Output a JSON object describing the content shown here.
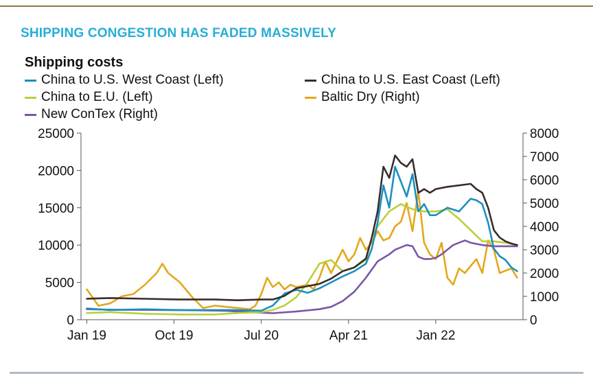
{
  "header": {
    "headline": "SHIPPING CONGESTION HAS FADED MASSIVELY"
  },
  "colors": {
    "headline": "#26aed6",
    "west_coast": "#1a8fc1",
    "east_coast": "#3a2c2c",
    "eu": "#bccf38",
    "baltic": "#e3a71b",
    "contex": "#7a56a8"
  },
  "chart_data": {
    "type": "line",
    "title": "Shipping costs",
    "x_tick_labels": [
      "Jan 19",
      "Oct 19",
      "Jul 20",
      "Apr 21",
      "Jan 22"
    ],
    "x_tick_values": [
      2019.0,
      2019.75,
      2020.5,
      2021.25,
      2022.0
    ],
    "x_range": [
      2018.95,
      2022.75
    ],
    "y_left": {
      "ylim": [
        0,
        25000
      ],
      "ticks": [
        "0",
        "5000",
        "10000",
        "15000",
        "20000",
        "25000"
      ]
    },
    "y_right": {
      "ylim": [
        0,
        8000
      ],
      "ticks": [
        "0",
        "1000",
        "2000",
        "3000",
        "4000",
        "5000",
        "6000",
        "7000",
        "8000"
      ]
    },
    "legend": [
      {
        "label": "China to U.S. West Coast (Left)",
        "series": "west_coast"
      },
      {
        "label": "China to U.S. East Coast (Left)",
        "series": "east_coast"
      },
      {
        "label": "China to E.U. (Left)",
        "series": "eu"
      },
      {
        "label": "Baltic Dry (Right)",
        "series": "baltic"
      },
      {
        "label": "New ConTex (Right)",
        "series": "contex"
      }
    ],
    "series": [
      {
        "name": "China to U.S. West Coast (Left)",
        "key": "west_coast",
        "axis": "left",
        "x": [
          2019.0,
          2019.2,
          2019.5,
          2019.8,
          2020.1,
          2020.3,
          2020.5,
          2020.6,
          2020.7,
          2020.8,
          2020.9,
          2021.0,
          2021.1,
          2021.2,
          2021.3,
          2021.4,
          2021.45,
          2021.5,
          2021.55,
          2021.6,
          2021.65,
          2021.7,
          2021.75,
          2021.8,
          2021.85,
          2021.9,
          2021.95,
          2022.0,
          2022.1,
          2022.2,
          2022.3,
          2022.35,
          2022.4,
          2022.45,
          2022.5,
          2022.55,
          2022.6,
          2022.65,
          2022.7
        ],
        "values": [
          1500,
          1300,
          1400,
          1300,
          1300,
          1300,
          1200,
          1900,
          3500,
          4000,
          3600,
          4200,
          5000,
          5800,
          6500,
          7500,
          9500,
          13000,
          18000,
          15000,
          20500,
          18500,
          16500,
          19500,
          14500,
          15500,
          14000,
          14000,
          15000,
          14500,
          16200,
          16000,
          15500,
          13000,
          9500,
          8500,
          8000,
          7000,
          6500
        ]
      },
      {
        "name": "China to U.S. East Coast (Left)",
        "key": "east_coast",
        "axis": "left",
        "x": [
          2019.0,
          2019.2,
          2019.5,
          2019.8,
          2020.1,
          2020.3,
          2020.5,
          2020.6,
          2020.7,
          2020.8,
          2020.9,
          2021.0,
          2021.1,
          2021.2,
          2021.3,
          2021.4,
          2021.45,
          2021.5,
          2021.55,
          2021.6,
          2021.65,
          2021.7,
          2021.75,
          2021.8,
          2021.85,
          2021.9,
          2021.95,
          2022.0,
          2022.1,
          2022.2,
          2022.3,
          2022.35,
          2022.4,
          2022.45,
          2022.5,
          2022.55,
          2022.6,
          2022.65,
          2022.7
        ],
        "values": [
          2800,
          2900,
          2800,
          2700,
          2700,
          2600,
          2700,
          2700,
          3200,
          4200,
          4500,
          4800,
          5500,
          6500,
          7000,
          8200,
          11000,
          14500,
          20500,
          19000,
          22000,
          21000,
          20500,
          21500,
          17000,
          17500,
          17000,
          17500,
          17800,
          18000,
          18200,
          17500,
          17000,
          15000,
          12000,
          11000,
          10500,
          10200,
          10000
        ]
      },
      {
        "name": "China to E.U. (Left)",
        "key": "eu",
        "axis": "left",
        "x": [
          2019.0,
          2019.2,
          2019.5,
          2019.8,
          2020.1,
          2020.3,
          2020.5,
          2020.6,
          2020.7,
          2020.8,
          2020.9,
          2021.0,
          2021.1,
          2021.2,
          2021.3,
          2021.4,
          2021.45,
          2021.5,
          2021.55,
          2021.6,
          2021.7,
          2021.8,
          2021.9,
          2022.0,
          2022.1,
          2022.2,
          2022.3,
          2022.4,
          2022.5,
          2022.6,
          2022.7
        ],
        "values": [
          900,
          1000,
          800,
          700,
          700,
          900,
          1000,
          1300,
          1900,
          3000,
          5000,
          7500,
          8000,
          6500,
          7000,
          8000,
          11000,
          12500,
          13500,
          14500,
          15500,
          14800,
          14500,
          14500,
          14800,
          13500,
          12000,
          10500,
          10500,
          10300,
          10000
        ]
      },
      {
        "name": "Baltic Dry (Right)",
        "key": "baltic",
        "axis": "right",
        "x": [
          2019.0,
          2019.1,
          2019.2,
          2019.3,
          2019.4,
          2019.5,
          2019.6,
          2019.65,
          2019.7,
          2019.75,
          2019.8,
          2019.9,
          2020.0,
          2020.1,
          2020.2,
          2020.3,
          2020.4,
          2020.45,
          2020.5,
          2020.55,
          2020.6,
          2020.65,
          2020.7,
          2020.75,
          2020.8,
          2020.9,
          2020.95,
          2021.0,
          2021.05,
          2021.1,
          2021.15,
          2021.2,
          2021.25,
          2021.3,
          2021.35,
          2021.4,
          2021.45,
          2021.5,
          2021.55,
          2021.6,
          2021.65,
          2021.7,
          2021.75,
          2021.8,
          2021.85,
          2021.9,
          2021.95,
          2022.0,
          2022.05,
          2022.1,
          2022.15,
          2022.2,
          2022.25,
          2022.3,
          2022.35,
          2022.4,
          2022.45,
          2022.5,
          2022.55,
          2022.6,
          2022.65,
          2022.7
        ],
        "values": [
          1300,
          600,
          700,
          1000,
          1100,
          1500,
          2000,
          2400,
          2000,
          1800,
          1600,
          1000,
          500,
          600,
          550,
          500,
          450,
          600,
          1100,
          1800,
          1400,
          1600,
          1300,
          1500,
          1400,
          1500,
          1300,
          1800,
          2500,
          2000,
          2500,
          3000,
          2500,
          2800,
          3500,
          3000,
          3300,
          3800,
          3400,
          3500,
          4000,
          4200,
          5000,
          3800,
          5500,
          3300,
          2800,
          2600,
          3300,
          1800,
          1500,
          2200,
          2000,
          2300,
          2600,
          2000,
          3400,
          3000,
          2000,
          2100,
          2200,
          1800
        ]
      },
      {
        "name": "New ConTex (Right)",
        "key": "contex",
        "axis": "right",
        "x": [
          2019.0,
          2019.2,
          2019.5,
          2019.8,
          2020.0,
          2020.2,
          2020.4,
          2020.6,
          2020.8,
          2021.0,
          2021.1,
          2021.2,
          2021.3,
          2021.4,
          2021.5,
          2021.6,
          2021.65,
          2021.7,
          2021.75,
          2021.8,
          2021.85,
          2021.9,
          2021.95,
          2022.0,
          2022.05,
          2022.1,
          2022.15,
          2022.2,
          2022.25,
          2022.3,
          2022.35,
          2022.4,
          2022.5,
          2022.6,
          2022.7
        ],
        "values": [
          450,
          430,
          420,
          410,
          400,
          380,
          320,
          280,
          350,
          450,
          550,
          800,
          1200,
          1800,
          2500,
          2800,
          3000,
          3100,
          3200,
          3150,
          2700,
          2600,
          2600,
          2650,
          2800,
          3000,
          3200,
          3300,
          3400,
          3300,
          3250,
          3200,
          3150,
          3150,
          3150
        ]
      }
    ]
  }
}
